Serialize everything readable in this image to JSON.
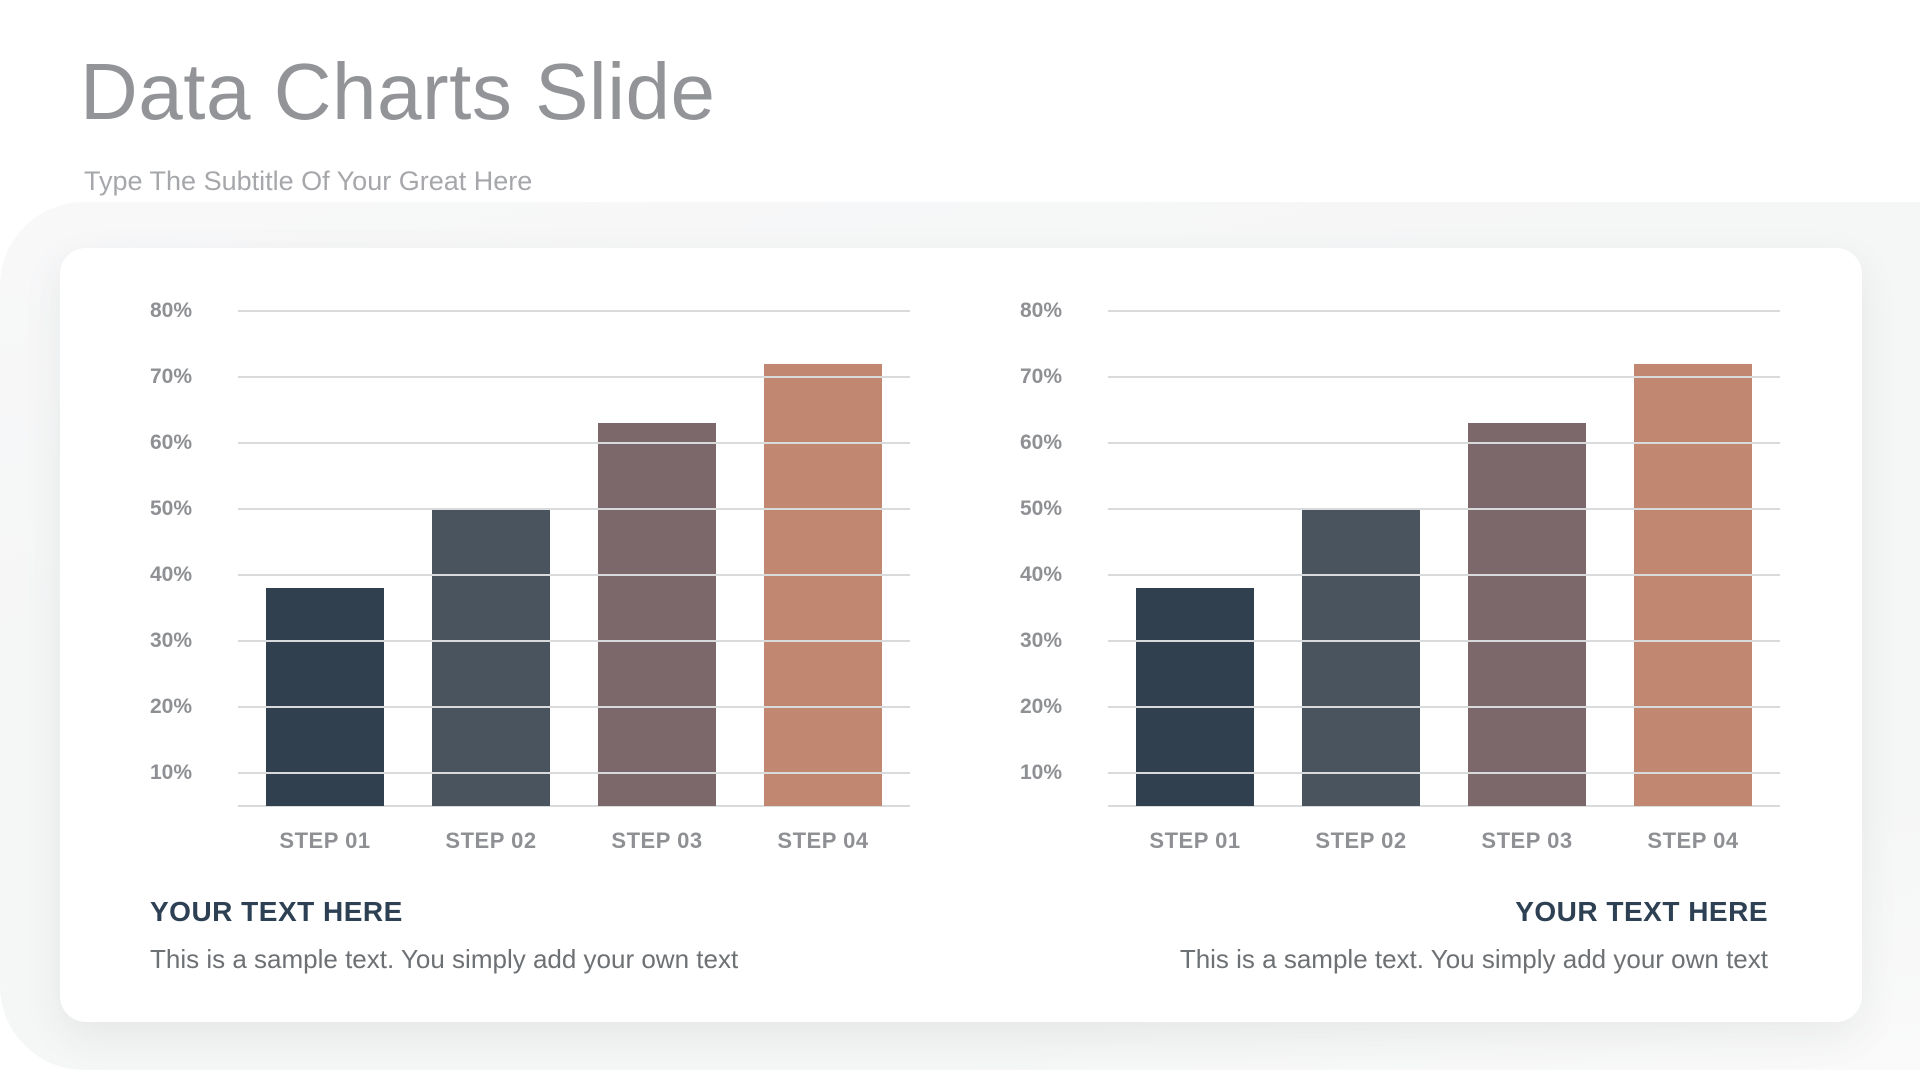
{
  "slide": {
    "title": "Data Charts Slide",
    "subtitle": "Type The Subtitle Of Your Great Here"
  },
  "chart_data": [
    {
      "type": "bar",
      "categories": [
        "STEP 01",
        "STEP 02",
        "STEP 03",
        "STEP 04"
      ],
      "values": [
        38,
        50,
        63,
        72
      ],
      "value_unit": "%",
      "y_tick_labels": [
        "80%",
        "70%",
        "60%",
        "50%",
        "40%",
        "30%",
        "20%",
        "10%"
      ],
      "ylim": [
        0,
        85
      ],
      "grid": "horizontal",
      "legend": "none",
      "bar_colors": [
        "#31404f",
        "#4a545e",
        "#7c676b",
        "#c28770"
      ],
      "caption_title": "YOUR TEXT HERE",
      "caption_text": "This is a sample text. You simply add your own text",
      "caption_align": "left"
    },
    {
      "type": "bar",
      "categories": [
        "STEP 01",
        "STEP 02",
        "STEP 03",
        "STEP 04"
      ],
      "values": [
        38,
        50,
        63,
        72
      ],
      "value_unit": "%",
      "y_tick_labels": [
        "80%",
        "70%",
        "60%",
        "50%",
        "40%",
        "30%",
        "20%",
        "10%"
      ],
      "ylim": [
        0,
        85
      ],
      "grid": "horizontal",
      "legend": "none",
      "bar_colors": [
        "#31404f",
        "#4a545e",
        "#7c676b",
        "#c28770"
      ],
      "caption_title": "YOUR TEXT HERE",
      "caption_text": "This is a sample text. You simply add your own text",
      "caption_align": "right"
    }
  ],
  "theme": {
    "page_background": "#ffffff",
    "panel_background": "#f5f6f6",
    "card_background": "#ffffff",
    "title_color": "#929497",
    "subtitle_color": "#a5a7aa",
    "axis_label_color": "#8e9093",
    "gridline_color": "#d9dadb",
    "caption_title_color": "#2e4154",
    "caption_text_color": "#6e7174"
  }
}
